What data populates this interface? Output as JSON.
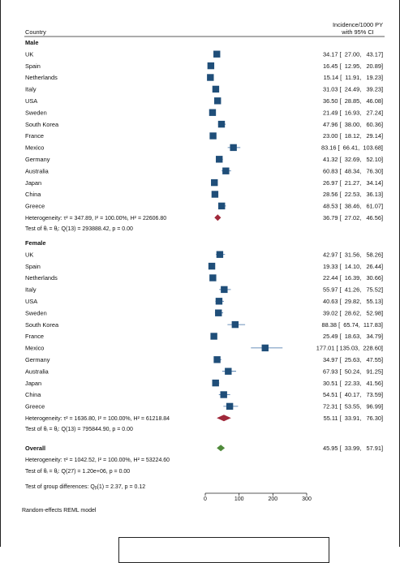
{
  "chart_data": {
    "type": "forest",
    "header": {
      "country": "Country",
      "estimate_line1": "Incidence/1000 PY",
      "estimate_line2": "with 95% CI"
    },
    "groups": [
      {
        "name": "Male",
        "rows": [
          {
            "label": "UK",
            "est": 34.17,
            "lo": 27.0,
            "hi": 43.17,
            "text": "34.17 [  27.00,   43.17]"
          },
          {
            "label": "Spain",
            "est": 16.45,
            "lo": 12.95,
            "hi": 20.89,
            "text": "16.45 [  12.95,   20.89]"
          },
          {
            "label": "Netherlands",
            "est": 15.14,
            "lo": 11.91,
            "hi": 19.23,
            "text": "15.14 [  11.91,   19.23]"
          },
          {
            "label": "Italy",
            "est": 31.03,
            "lo": 24.49,
            "hi": 39.23,
            "text": "31.03 [  24.49,   39.23]"
          },
          {
            "label": "USA",
            "est": 36.5,
            "lo": 28.85,
            "hi": 46.08,
            "text": "36.50 [  28.85,   46.08]"
          },
          {
            "label": "Sweden",
            "est": 21.49,
            "lo": 16.93,
            "hi": 27.24,
            "text": "21.49 [  16.93,   27.24]"
          },
          {
            "label": "South Korea",
            "est": 47.96,
            "lo": 38.0,
            "hi": 60.36,
            "text": "47.96 [  38.00,   60.36]"
          },
          {
            "label": "France",
            "est": 23.0,
            "lo": 18.12,
            "hi": 29.14,
            "text": "23.00 [  18.12,   29.14]"
          },
          {
            "label": "Mexico",
            "est": 83.16,
            "lo": 66.41,
            "hi": 103.68,
            "text": "83.16 [  66.41,  103.68]"
          },
          {
            "label": "Germany",
            "est": 41.32,
            "lo": 32.69,
            "hi": 52.1,
            "text": "41.32 [  32.69,   52.10]"
          },
          {
            "label": "Australia",
            "est": 60.83,
            "lo": 48.34,
            "hi": 76.3,
            "text": "60.83 [  48.34,   76.30]"
          },
          {
            "label": "Japan",
            "est": 26.97,
            "lo": 21.27,
            "hi": 34.14,
            "text": "26.97 [  21.27,   34.14]"
          },
          {
            "label": "China",
            "est": 28.56,
            "lo": 22.53,
            "hi": 36.13,
            "text": "28.56 [  22.53,   36.13]"
          },
          {
            "label": "Greece",
            "est": 48.53,
            "lo": 38.46,
            "hi": 61.07,
            "text": "48.53 [  38.46,   61.07]"
          }
        ],
        "summary": {
          "label": "Heterogeneity: τ² = 347.89, I² = 100.00%, H² = 22606.80",
          "est": 36.79,
          "lo": 27.02,
          "hi": 46.56,
          "text": "36.79 [  27.02,   46.56]"
        },
        "test": "Test of θᵢ = θⱼ: Q(13) = 293888.42, p = 0.00"
      },
      {
        "name": "Female",
        "rows": [
          {
            "label": "UK",
            "est": 42.97,
            "lo": 31.56,
            "hi": 58.26,
            "text": "42.97 [  31.56,   58.26]"
          },
          {
            "label": "Spain",
            "est": 19.33,
            "lo": 14.1,
            "hi": 26.44,
            "text": "19.33 [  14.10,   26.44]"
          },
          {
            "label": "Netherlands",
            "est": 22.44,
            "lo": 16.39,
            "hi": 30.66,
            "text": "22.44 [  16.39,   30.66]"
          },
          {
            "label": "Italy",
            "est": 55.97,
            "lo": 41.26,
            "hi": 75.52,
            "text": "55.97 [  41.26,   75.52]"
          },
          {
            "label": "USA",
            "est": 40.63,
            "lo": 29.82,
            "hi": 55.13,
            "text": "40.63 [  29.82,   55.13]"
          },
          {
            "label": "Sweden",
            "est": 39.02,
            "lo": 28.62,
            "hi": 52.98,
            "text": "39.02 [  28.62,   52.98]"
          },
          {
            "label": "South Korea",
            "est": 88.38,
            "lo": 65.74,
            "hi": 117.83,
            "text": "88.38 [  65.74,  117.83]"
          },
          {
            "label": "France",
            "est": 25.49,
            "lo": 18.63,
            "hi": 34.79,
            "text": "25.49 [  18.63,   34.79]"
          },
          {
            "label": "Mexico",
            "est": 177.01,
            "lo": 135.03,
            "hi": 228.6,
            "text": "177.01 [ 135.03,  228.60]"
          },
          {
            "label": "Germany",
            "est": 34.97,
            "lo": 25.63,
            "hi": 47.55,
            "text": "34.97 [  25.63,   47.55]"
          },
          {
            "label": "Australia",
            "est": 67.93,
            "lo": 50.24,
            "hi": 91.25,
            "text": "67.93 [  50.24,   91.25]"
          },
          {
            "label": "Japan",
            "est": 30.51,
            "lo": 22.33,
            "hi": 41.56,
            "text": "30.51 [  22.33,   41.56]"
          },
          {
            "label": "China",
            "est": 54.51,
            "lo": 40.17,
            "hi": 73.59,
            "text": "54.51 [  40.17,   73.59]"
          },
          {
            "label": "Greece",
            "est": 72.31,
            "lo": 53.55,
            "hi": 96.99,
            "text": "72.31 [  53.55,   96.99]"
          }
        ],
        "summary": {
          "label": "Heterogeneity: τ² = 1636.80, I² = 100.00%, H² = 61218.84",
          "est": 55.11,
          "lo": 33.91,
          "hi": 76.3,
          "text": "55.11 [  33.91,   76.30]"
        },
        "test": "Test of θᵢ = θⱼ: Q(13) = 795844.90, p = 0.00"
      }
    ],
    "overall": {
      "name": "Overall",
      "est": 45.95,
      "lo": 33.99,
      "hi": 57.91,
      "text": "45.95 [  33.99,   57.91]",
      "heterogeneity": "Heterogeneity: τ² = 1042.52, I² = 100.00%, H² = 53224.60",
      "test": "Test of θᵢ = θⱼ: Q(27) = 1.20e+06, p = 0.00"
    },
    "group_test": "Test of group differences: Qᵦ(1) = 2.37, p = 0.12",
    "x_ticks": [
      0,
      100,
      200,
      300
    ],
    "xlim": [
      0,
      300
    ],
    "footnote": "Random-effects REML model",
    "colors": {
      "study": "#1f4e79",
      "ci": "#3a6ea5",
      "group_summary": "#a0283a",
      "overall_summary": "#4f8a3a"
    }
  }
}
